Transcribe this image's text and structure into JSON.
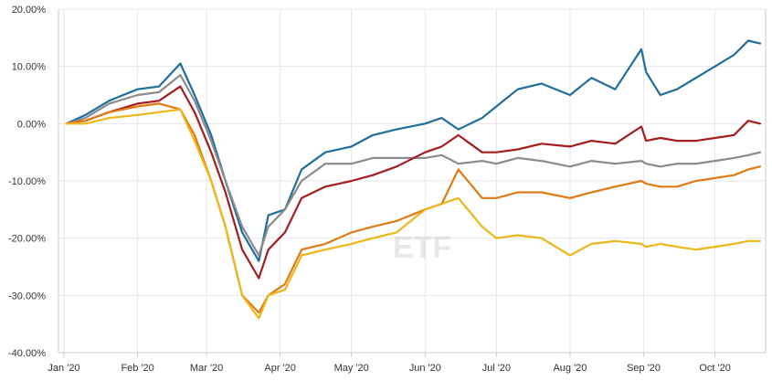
{
  "chart_data": {
    "type": "line",
    "title": "",
    "xlabel": "",
    "ylabel": "",
    "ylim": [
      -40,
      20
    ],
    "y_ticks": [
      20,
      10,
      0,
      -10,
      -20,
      -30,
      -40
    ],
    "y_tick_labels": [
      "20.00%",
      "10.00%",
      "0.00%",
      "-10.00%",
      "-20.00%",
      "-30.00%",
      "-40.00%"
    ],
    "x_tick_labels": [
      "Jan '20",
      "Feb '20",
      "Mar '20",
      "Apr '20",
      "May '20",
      "Jun '20",
      "Jul '20",
      "Aug '20",
      "Sep '20",
      "Oct '20"
    ],
    "x_tick_dates": [
      "2020-01-01",
      "2020-02-01",
      "2020-03-01",
      "2020-04-01",
      "2020-05-01",
      "2020-06-01",
      "2020-07-01",
      "2020-08-01",
      "2020-09-01",
      "2020-10-01"
    ],
    "x_range": [
      "2020-01-01",
      "2020-10-20"
    ],
    "grid": true,
    "legend": "none",
    "watermark": "ETF",
    "series": [
      {
        "color": "#1f6e9c",
        "x": [
          "2020-01-02",
          "2020-01-10",
          "2020-01-20",
          "2020-02-01",
          "2020-02-10",
          "2020-02-19",
          "2020-02-25",
          "2020-03-03",
          "2020-03-09",
          "2020-03-16",
          "2020-03-23",
          "2020-03-27",
          "2020-04-03",
          "2020-04-10",
          "2020-04-20",
          "2020-05-01",
          "2020-05-10",
          "2020-05-20",
          "2020-06-01",
          "2020-06-08",
          "2020-06-15",
          "2020-06-25",
          "2020-07-01",
          "2020-07-10",
          "2020-07-20",
          "2020-08-01",
          "2020-08-10",
          "2020-08-20",
          "2020-08-31",
          "2020-09-02",
          "2020-09-08",
          "2020-09-15",
          "2020-09-23",
          "2020-10-01",
          "2020-10-09",
          "2020-10-15",
          "2020-10-20"
        ],
        "y": [
          0,
          1.5,
          4,
          6,
          6.5,
          10.5,
          5,
          -2,
          -10,
          -19,
          -24,
          -16,
          -15,
          -8,
          -5,
          -4,
          -2,
          -1,
          0,
          1,
          -1,
          1,
          3,
          6,
          7,
          5,
          8,
          6,
          13,
          9,
          5,
          6,
          8,
          10,
          12,
          14.5,
          14
        ]
      },
      {
        "color": "#8b8b8b",
        "x": [
          "2020-01-02",
          "2020-01-10",
          "2020-01-20",
          "2020-02-01",
          "2020-02-10",
          "2020-02-19",
          "2020-02-25",
          "2020-03-03",
          "2020-03-09",
          "2020-03-16",
          "2020-03-23",
          "2020-03-27",
          "2020-04-03",
          "2020-04-10",
          "2020-04-20",
          "2020-05-01",
          "2020-05-10",
          "2020-05-20",
          "2020-06-01",
          "2020-06-08",
          "2020-06-15",
          "2020-06-25",
          "2020-07-01",
          "2020-07-10",
          "2020-07-20",
          "2020-08-01",
          "2020-08-10",
          "2020-08-20",
          "2020-08-31",
          "2020-09-02",
          "2020-09-08",
          "2020-09-15",
          "2020-09-23",
          "2020-10-01",
          "2020-10-09",
          "2020-10-15",
          "2020-10-20"
        ],
        "y": [
          0,
          1,
          3.5,
          5,
          5.5,
          8.5,
          4,
          -3,
          -10,
          -18,
          -23,
          -18,
          -15,
          -10,
          -7,
          -7,
          -6,
          -6,
          -6,
          -5.5,
          -7,
          -6.5,
          -7,
          -6,
          -6.5,
          -7.5,
          -6.5,
          -7,
          -6.5,
          -7,
          -7.5,
          -7,
          -7,
          -6.5,
          -6,
          -5.5,
          -5
        ]
      },
      {
        "color": "#a51d1d",
        "x": [
          "2020-01-02",
          "2020-01-10",
          "2020-01-20",
          "2020-02-01",
          "2020-02-10",
          "2020-02-19",
          "2020-02-25",
          "2020-03-03",
          "2020-03-09",
          "2020-03-16",
          "2020-03-23",
          "2020-03-27",
          "2020-04-03",
          "2020-04-10",
          "2020-04-20",
          "2020-05-01",
          "2020-05-10",
          "2020-05-20",
          "2020-06-01",
          "2020-06-08",
          "2020-06-15",
          "2020-06-25",
          "2020-07-01",
          "2020-07-10",
          "2020-07-20",
          "2020-08-01",
          "2020-08-10",
          "2020-08-20",
          "2020-08-31",
          "2020-09-02",
          "2020-09-08",
          "2020-09-15",
          "2020-09-23",
          "2020-10-01",
          "2020-10-09",
          "2020-10-15",
          "2020-10-20"
        ],
        "y": [
          0,
          0.5,
          2,
          3.5,
          4,
          6.5,
          2,
          -5,
          -12,
          -22,
          -27,
          -22,
          -19,
          -13,
          -11,
          -10,
          -9,
          -7.5,
          -5,
          -4,
          -2,
          -5,
          -5,
          -4.5,
          -3.5,
          -4,
          -3,
          -3.5,
          -0.5,
          -3,
          -2.5,
          -3,
          -3,
          -2.5,
          -2,
          0.5,
          0
        ]
      },
      {
        "color": "#e07a13",
        "x": [
          "2020-01-02",
          "2020-01-10",
          "2020-01-20",
          "2020-02-01",
          "2020-02-10",
          "2020-02-19",
          "2020-02-25",
          "2020-03-03",
          "2020-03-09",
          "2020-03-16",
          "2020-03-23",
          "2020-03-27",
          "2020-04-03",
          "2020-04-10",
          "2020-04-20",
          "2020-05-01",
          "2020-05-10",
          "2020-05-20",
          "2020-06-01",
          "2020-06-08",
          "2020-06-15",
          "2020-06-25",
          "2020-07-01",
          "2020-07-10",
          "2020-07-20",
          "2020-08-01",
          "2020-08-10",
          "2020-08-20",
          "2020-08-31",
          "2020-09-02",
          "2020-09-08",
          "2020-09-15",
          "2020-09-23",
          "2020-10-01",
          "2020-10-09",
          "2020-10-15",
          "2020-10-20"
        ],
        "y": [
          0,
          0.5,
          2,
          3,
          3.5,
          2.5,
          -2,
          -10,
          -18,
          -30,
          -33,
          -30,
          -28,
          -22,
          -21,
          -19,
          -18,
          -17,
          -15,
          -14,
          -8,
          -13,
          -13,
          -12,
          -12,
          -13,
          -12,
          -11,
          -10,
          -10.5,
          -11,
          -11,
          -10,
          -9.5,
          -9,
          -8,
          -7.5
        ]
      },
      {
        "color": "#efb61a",
        "x": [
          "2020-01-02",
          "2020-01-10",
          "2020-01-20",
          "2020-02-01",
          "2020-02-10",
          "2020-02-19",
          "2020-02-25",
          "2020-03-03",
          "2020-03-09",
          "2020-03-16",
          "2020-03-23",
          "2020-03-27",
          "2020-04-03",
          "2020-04-10",
          "2020-04-20",
          "2020-05-01",
          "2020-05-10",
          "2020-05-20",
          "2020-06-01",
          "2020-06-08",
          "2020-06-15",
          "2020-06-25",
          "2020-07-01",
          "2020-07-10",
          "2020-07-20",
          "2020-08-01",
          "2020-08-10",
          "2020-08-20",
          "2020-08-31",
          "2020-09-02",
          "2020-09-08",
          "2020-09-15",
          "2020-09-23",
          "2020-10-01",
          "2020-10-09",
          "2020-10-15",
          "2020-10-20"
        ],
        "y": [
          0,
          0,
          1,
          1.5,
          2,
          2.5,
          -3,
          -10,
          -18,
          -30,
          -34,
          -30,
          -29,
          -23,
          -22,
          -21,
          -20,
          -19,
          -15,
          -14,
          -13,
          -18,
          -20,
          -19.5,
          -20,
          -23,
          -21,
          -20.5,
          -21,
          -21.5,
          -21,
          -21.5,
          -22,
          -21.5,
          -21,
          -20.5,
          -20.5
        ]
      }
    ]
  }
}
